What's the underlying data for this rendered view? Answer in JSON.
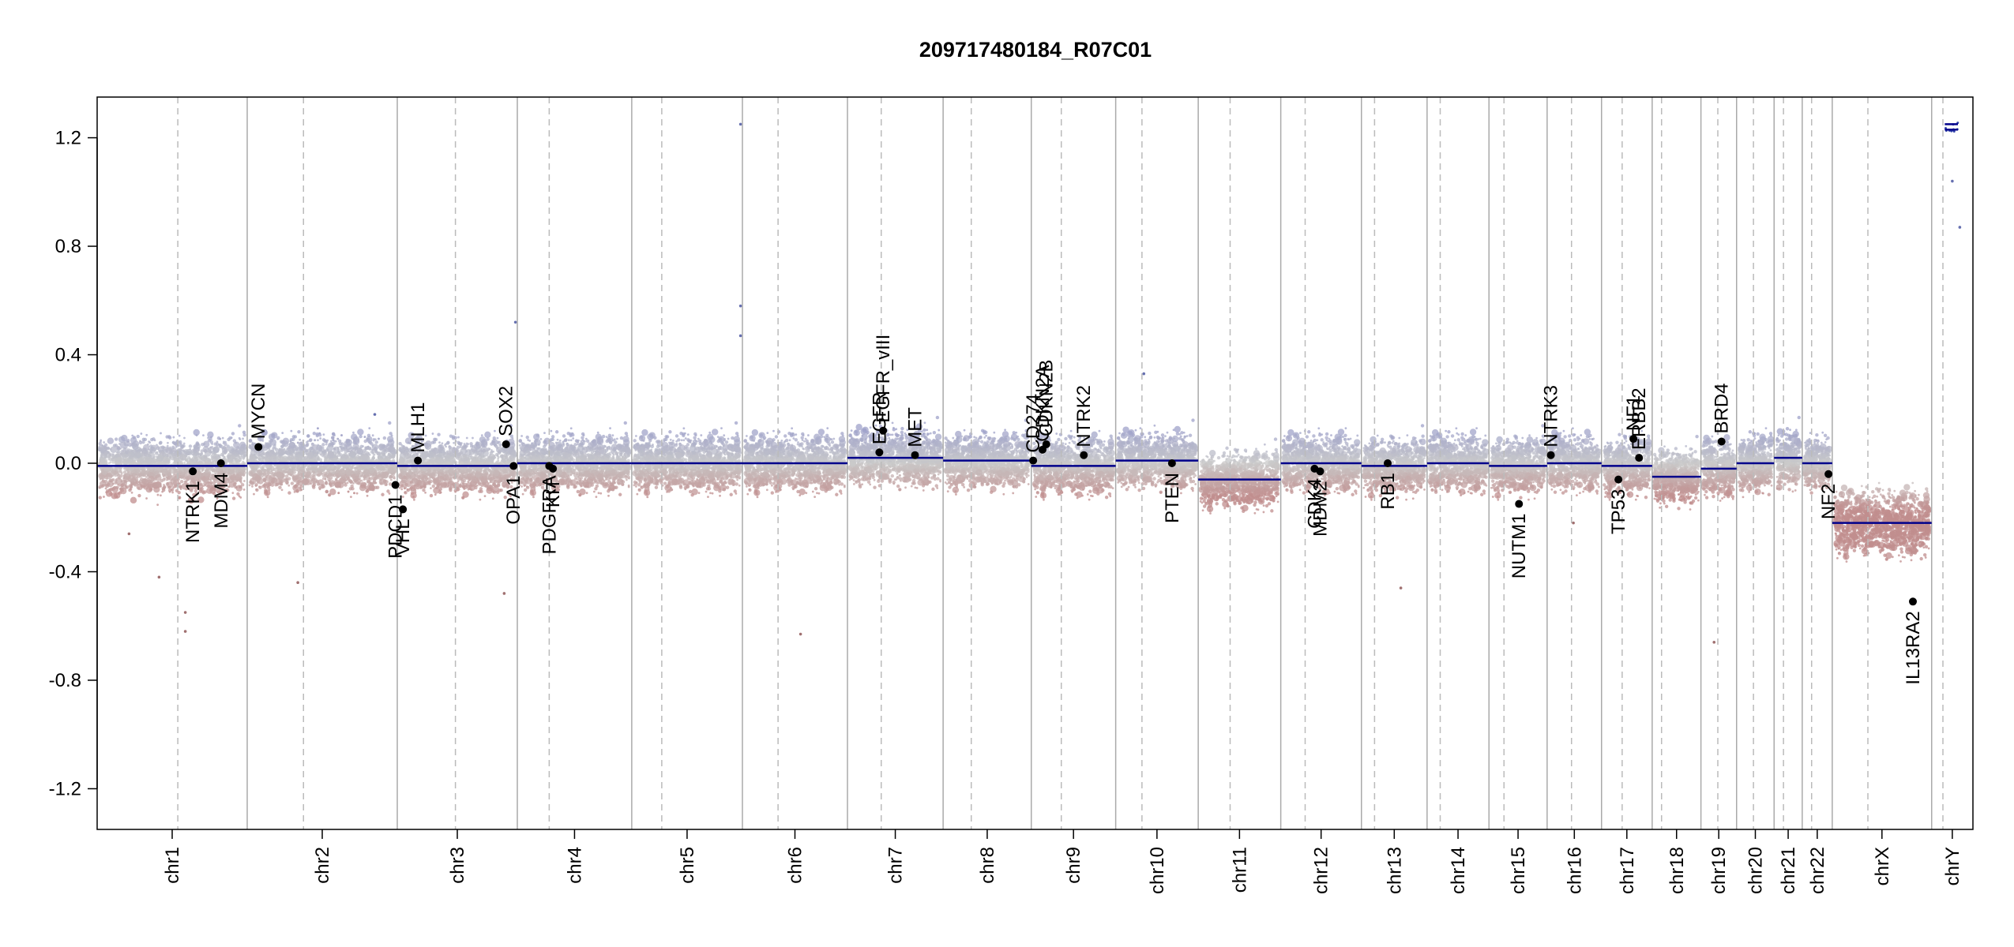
{
  "chart_data": {
    "type": "scatter",
    "title": "209717480184_R07C01",
    "xlabel": "",
    "ylabel": "",
    "ylim": [
      -1.35,
      1.35
    ],
    "yticks": [
      {
        "value": 1.2,
        "label": "1.2"
      },
      {
        "value": 0.8,
        "label": "0.8"
      },
      {
        "value": 0.4,
        "label": "0.4"
      },
      {
        "value": 0.0,
        "label": "0.0"
      },
      {
        "value": -0.4,
        "label": "-0.4"
      },
      {
        "value": -0.8,
        "label": "-0.8"
      },
      {
        "value": -1.2,
        "label": "-1.2"
      }
    ],
    "chromosomes": [
      {
        "name": "chr1",
        "start": 0.0,
        "end": 0.08,
        "centromere": 0.043,
        "segments": [
          {
            "start": 0.0,
            "end": 0.08,
            "value": -0.01
          }
        ]
      },
      {
        "name": "chr2",
        "start": 0.08,
        "end": 0.16,
        "centromere": 0.11,
        "segments": [
          {
            "start": 0.08,
            "end": 0.16,
            "value": 0.0
          }
        ]
      },
      {
        "name": "chr3",
        "start": 0.16,
        "end": 0.224,
        "centromere": 0.191,
        "segments": [
          {
            "start": 0.16,
            "end": 0.224,
            "value": -0.01
          }
        ]
      },
      {
        "name": "chr4",
        "start": 0.224,
        "end": 0.285,
        "centromere": 0.241,
        "segments": [
          {
            "start": 0.224,
            "end": 0.285,
            "value": 0.0
          }
        ]
      },
      {
        "name": "chr5",
        "start": 0.285,
        "end": 0.344,
        "centromere": 0.301,
        "segments": [
          {
            "start": 0.285,
            "end": 0.344,
            "value": 0.0
          }
        ]
      },
      {
        "name": "chr6",
        "start": 0.344,
        "end": 0.4,
        "centromere": 0.363,
        "segments": [
          {
            "start": 0.344,
            "end": 0.4,
            "value": 0.0
          }
        ]
      },
      {
        "name": "chr7",
        "start": 0.4,
        "end": 0.451,
        "centromere": 0.418,
        "segments": [
          {
            "start": 0.4,
            "end": 0.451,
            "value": 0.02
          }
        ]
      },
      {
        "name": "chr8",
        "start": 0.451,
        "end": 0.498,
        "centromere": 0.466,
        "segments": [
          {
            "start": 0.451,
            "end": 0.498,
            "value": 0.01
          }
        ]
      },
      {
        "name": "chr9",
        "start": 0.498,
        "end": 0.543,
        "centromere": 0.514,
        "segments": [
          {
            "start": 0.498,
            "end": 0.543,
            "value": -0.01
          }
        ]
      },
      {
        "name": "chr10",
        "start": 0.543,
        "end": 0.587,
        "centromere": 0.557,
        "segments": [
          {
            "start": 0.543,
            "end": 0.587,
            "value": 0.01
          }
        ]
      },
      {
        "name": "chr11",
        "start": 0.587,
        "end": 0.631,
        "centromere": 0.604,
        "segments": [
          {
            "start": 0.587,
            "end": 0.631,
            "value": -0.06
          }
        ]
      },
      {
        "name": "chr12",
        "start": 0.631,
        "end": 0.674,
        "centromere": 0.644,
        "segments": [
          {
            "start": 0.631,
            "end": 0.674,
            "value": 0.0
          }
        ]
      },
      {
        "name": "chr13",
        "start": 0.674,
        "end": 0.709,
        "centromere": 0.681,
        "segments": [
          {
            "start": 0.674,
            "end": 0.709,
            "value": -0.01
          }
        ]
      },
      {
        "name": "chr14",
        "start": 0.709,
        "end": 0.742,
        "centromere": 0.716,
        "segments": [
          {
            "start": 0.709,
            "end": 0.742,
            "value": 0.0
          }
        ]
      },
      {
        "name": "chr15",
        "start": 0.742,
        "end": 0.773,
        "centromere": 0.75,
        "segments": [
          {
            "start": 0.742,
            "end": 0.773,
            "value": -0.01
          }
        ]
      },
      {
        "name": "chr16",
        "start": 0.773,
        "end": 0.802,
        "centromere": 0.786,
        "segments": [
          {
            "start": 0.773,
            "end": 0.802,
            "value": 0.0
          }
        ]
      },
      {
        "name": "chr17",
        "start": 0.802,
        "end": 0.829,
        "centromere": 0.813,
        "segments": [
          {
            "start": 0.802,
            "end": 0.829,
            "value": -0.01
          }
        ]
      },
      {
        "name": "chr18",
        "start": 0.829,
        "end": 0.855,
        "centromere": 0.834,
        "segments": [
          {
            "start": 0.829,
            "end": 0.855,
            "value": -0.05
          }
        ]
      },
      {
        "name": "chr19",
        "start": 0.855,
        "end": 0.874,
        "centromere": 0.864,
        "segments": [
          {
            "start": 0.855,
            "end": 0.874,
            "value": -0.02
          }
        ]
      },
      {
        "name": "chr20",
        "start": 0.874,
        "end": 0.894,
        "centromere": 0.883,
        "segments": [
          {
            "start": 0.874,
            "end": 0.894,
            "value": 0.0
          }
        ]
      },
      {
        "name": "chr21",
        "start": 0.894,
        "end": 0.909,
        "centromere": 0.899,
        "segments": [
          {
            "start": 0.894,
            "end": 0.909,
            "value": 0.02
          }
        ]
      },
      {
        "name": "chr22",
        "start": 0.909,
        "end": 0.925,
        "centromere": 0.914,
        "segments": [
          {
            "start": 0.909,
            "end": 0.925,
            "value": 0.0
          }
        ]
      },
      {
        "name": "chrX",
        "start": 0.925,
        "end": 0.978,
        "centromere": 0.944,
        "segments": [
          {
            "start": 0.925,
            "end": 0.978,
            "value": -0.22
          }
        ]
      },
      {
        "name": "chrY",
        "start": 0.978,
        "end": 1.0,
        "centromere": 0.984,
        "segments": [
          {
            "start": 0.985,
            "end": 0.992,
            "value": 1.23
          },
          {
            "start": 0.985,
            "end": 0.992,
            "value": 1.25
          }
        ]
      }
    ],
    "genes": [
      {
        "name": "NTRK1",
        "x": 0.051,
        "y": -0.03,
        "side": "below"
      },
      {
        "name": "MDM4",
        "x": 0.066,
        "y": 0.0,
        "side": "below"
      },
      {
        "name": "MYCN",
        "x": 0.086,
        "y": 0.06,
        "side": "above"
      },
      {
        "name": "PDCD1",
        "x": 0.159,
        "y": -0.08,
        "side": "below"
      },
      {
        "name": "VHL",
        "x": 0.163,
        "y": -0.17,
        "side": "below"
      },
      {
        "name": "MLH1",
        "x": 0.171,
        "y": 0.01,
        "side": "above"
      },
      {
        "name": "SOX2",
        "x": 0.218,
        "y": 0.07,
        "side": "above"
      },
      {
        "name": "OPA1",
        "x": 0.222,
        "y": -0.01,
        "side": "below"
      },
      {
        "name": "PDGFRA",
        "x": 0.241,
        "y": -0.01,
        "side": "below"
      },
      {
        "name": "KIT",
        "x": 0.243,
        "y": -0.02,
        "side": "below"
      },
      {
        "name": "EGFR",
        "x": 0.417,
        "y": 0.04,
        "side": "above"
      },
      {
        "name": "EGFR_vIII",
        "x": 0.419,
        "y": 0.12,
        "side": "above"
      },
      {
        "name": "MET",
        "x": 0.436,
        "y": 0.03,
        "side": "above"
      },
      {
        "name": "CD274",
        "x": 0.499,
        "y": 0.01,
        "side": "above"
      },
      {
        "name": "CDKN2A",
        "x": 0.504,
        "y": 0.05,
        "side": "above"
      },
      {
        "name": "CDKN2B",
        "x": 0.506,
        "y": 0.07,
        "side": "above"
      },
      {
        "name": "NTRK2",
        "x": 0.526,
        "y": 0.03,
        "side": "above"
      },
      {
        "name": "PTEN",
        "x": 0.573,
        "y": 0.0,
        "side": "below"
      },
      {
        "name": "CDK4",
        "x": 0.649,
        "y": -0.02,
        "side": "below"
      },
      {
        "name": "MDM2",
        "x": 0.652,
        "y": -0.03,
        "side": "below"
      },
      {
        "name": "RB1",
        "x": 0.688,
        "y": 0.0,
        "side": "below"
      },
      {
        "name": "NUTM1",
        "x": 0.758,
        "y": -0.15,
        "side": "below"
      },
      {
        "name": "NTRK3",
        "x": 0.775,
        "y": 0.03,
        "side": "above"
      },
      {
        "name": "TP53",
        "x": 0.811,
        "y": -0.06,
        "side": "below"
      },
      {
        "name": "NF1",
        "x": 0.819,
        "y": 0.09,
        "side": "above"
      },
      {
        "name": "ERBB2",
        "x": 0.822,
        "y": 0.02,
        "side": "above"
      },
      {
        "name": "BRD4",
        "x": 0.866,
        "y": 0.08,
        "side": "above"
      },
      {
        "name": "NF2",
        "x": 0.923,
        "y": -0.04,
        "side": "below"
      },
      {
        "name": "IL13RA2",
        "x": 0.968,
        "y": -0.51,
        "side": "below"
      }
    ],
    "outliers": [
      {
        "x": 0.343,
        "y": 1.25
      },
      {
        "x": 0.343,
        "y": 0.58
      },
      {
        "x": 0.343,
        "y": 0.47
      },
      {
        "x": 0.223,
        "y": 0.52
      },
      {
        "x": 0.217,
        "y": -0.48
      },
      {
        "x": 0.047,
        "y": -0.55
      },
      {
        "x": 0.047,
        "y": -0.62
      },
      {
        "x": 0.033,
        "y": -0.42
      },
      {
        "x": 0.017,
        "y": -0.26
      },
      {
        "x": 0.558,
        "y": 0.33
      },
      {
        "x": 0.375,
        "y": -0.63
      },
      {
        "x": 0.695,
        "y": -0.46
      },
      {
        "x": 0.993,
        "y": 0.87
      },
      {
        "x": 0.989,
        "y": 1.04
      },
      {
        "x": 0.862,
        "y": -0.66
      },
      {
        "x": 0.787,
        "y": -0.22
      },
      {
        "x": 0.107,
        "y": -0.44
      },
      {
        "x": 0.148,
        "y": 0.18
      }
    ],
    "colors": {
      "gain": "#9fa2c9",
      "neutral": "#c9c9c9",
      "loss": "#c08e8e",
      "segment": "#00008b",
      "chrom_border": "#aaaaaa",
      "centromere": "#bbbbbb",
      "gene_point": "#000000"
    },
    "grid": false,
    "legend": "none"
  }
}
